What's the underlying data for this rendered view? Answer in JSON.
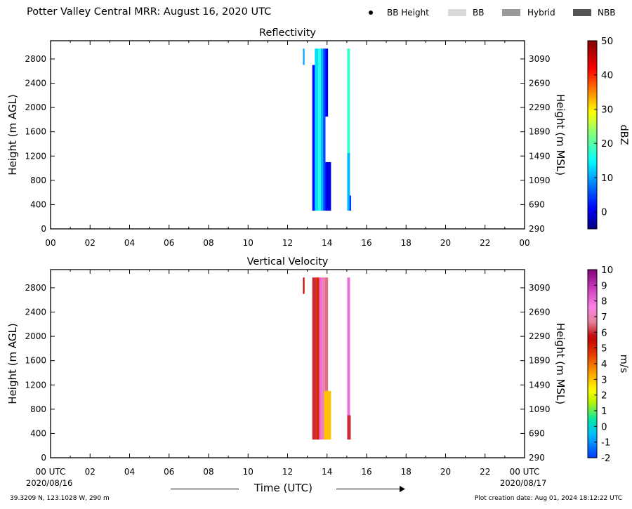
{
  "header": {
    "title": "Potter Valley Central MRR:  August 16, 2020 UTC",
    "legend": [
      {
        "label": "BB Height",
        "kind": "dot",
        "color": "#000000"
      },
      {
        "label": "BB",
        "kind": "swatch",
        "color": "#d9d9d9"
      },
      {
        "label": "Hybrid",
        "kind": "swatch",
        "color": "#999999"
      },
      {
        "label": "NBB",
        "kind": "swatch",
        "color": "#555555"
      }
    ]
  },
  "footer": {
    "coords": "39.3209 N, 123.1028 W, 290 m",
    "created": "Plot creation date: Aug 01, 2024 18:12:22 UTC",
    "time_label": "Time (UTC)",
    "start_date": "2020/08/16",
    "end_date": "2020/08/17"
  },
  "chart_data": [
    {
      "type": "heatmap",
      "title": "Reflectivity",
      "ylabel": "Height (m AGL)",
      "ylabel_right": "Height (m MSL)",
      "x_ticks": [
        "00",
        "02",
        "04",
        "06",
        "08",
        "10",
        "12",
        "14",
        "16",
        "18",
        "20",
        "22",
        "00"
      ],
      "xlim": [
        0,
        24
      ],
      "ylim": [
        0,
        3100
      ],
      "y_ticks": [
        0,
        400,
        800,
        1200,
        1600,
        2000,
        2400,
        2800
      ],
      "y_ticks_right": [
        290,
        690,
        1090,
        1490,
        1890,
        2290,
        2690,
        3090
      ],
      "colorbar": {
        "label": "dBZ",
        "min": -5,
        "max": 50,
        "ticks": [
          0,
          10,
          20,
          30,
          40,
          50
        ]
      },
      "columns": [
        {
          "t0": 12.78,
          "t1": 12.86,
          "h0": 2700,
          "h1": 2970,
          "value": 10
        },
        {
          "t0": 13.25,
          "t1": 13.42,
          "h0": 300,
          "h1": 2700,
          "value": 2
        },
        {
          "t0": 13.38,
          "t1": 13.55,
          "h0": 300,
          "h1": 2970,
          "value": 13
        },
        {
          "t0": 13.55,
          "t1": 13.68,
          "h0": 300,
          "h1": 2970,
          "value": 17
        },
        {
          "t0": 13.68,
          "t1": 13.8,
          "h0": 300,
          "h1": 2970,
          "value": 11
        },
        {
          "t0": 13.8,
          "t1": 13.92,
          "h0": 300,
          "h1": 2970,
          "value": 5
        },
        {
          "t0": 13.92,
          "t1": 14.05,
          "h0": 1850,
          "h1": 2970,
          "value": 1
        },
        {
          "t0": 13.92,
          "t1": 14.2,
          "h0": 300,
          "h1": 1100,
          "value": 0
        },
        {
          "t0": 15.02,
          "t1": 15.16,
          "h0": 1250,
          "h1": 2970,
          "value": 18
        },
        {
          "t0": 15.02,
          "t1": 15.16,
          "h0": 300,
          "h1": 1250,
          "value": 11
        },
        {
          "t0": 15.14,
          "t1": 15.22,
          "h0": 300,
          "h1": 550,
          "value": 4
        }
      ]
    },
    {
      "type": "heatmap",
      "title": "Vertical Velocity",
      "ylabel": "Height (m AGL)",
      "ylabel_right": "Height (m MSL)",
      "x_ticks": [
        "00 UTC",
        "02",
        "04",
        "06",
        "08",
        "10",
        "12",
        "14",
        "16",
        "18",
        "20",
        "22",
        "00 UTC"
      ],
      "xlim": [
        0,
        24
      ],
      "ylim": [
        0,
        3100
      ],
      "y_ticks": [
        0,
        400,
        800,
        1200,
        1600,
        2000,
        2400,
        2800
      ],
      "y_ticks_right": [
        290,
        690,
        1090,
        1490,
        1890,
        2290,
        2690,
        3090
      ],
      "colorbar": {
        "label": "m/s",
        "min": -2,
        "max": 10,
        "ticks": [
          -2,
          -1,
          0,
          1,
          2,
          3,
          4,
          5,
          6,
          7,
          8,
          9,
          10
        ]
      },
      "columns": [
        {
          "t0": 12.78,
          "t1": 12.86,
          "h0": 2700,
          "h1": 2970,
          "value": 5.5
        },
        {
          "t0": 13.25,
          "t1": 13.45,
          "h0": 300,
          "h1": 2970,
          "value": 6
        },
        {
          "t0": 13.45,
          "t1": 13.6,
          "h0": 300,
          "h1": 2970,
          "value": 5
        },
        {
          "t0": 13.6,
          "t1": 13.75,
          "h0": 300,
          "h1": 2970,
          "value": 8
        },
        {
          "t0": 13.75,
          "t1": 13.9,
          "h0": 300,
          "h1": 2970,
          "value": 7
        },
        {
          "t0": 13.9,
          "t1": 14.05,
          "h0": 1100,
          "h1": 2970,
          "value": 6.5
        },
        {
          "t0": 13.85,
          "t1": 14.2,
          "h0": 300,
          "h1": 1100,
          "value": 3
        },
        {
          "t0": 15.02,
          "t1": 15.16,
          "h0": 700,
          "h1": 2970,
          "value": 8
        },
        {
          "t0": 15.02,
          "t1": 15.2,
          "h0": 300,
          "h1": 700,
          "value": 6
        }
      ]
    }
  ]
}
